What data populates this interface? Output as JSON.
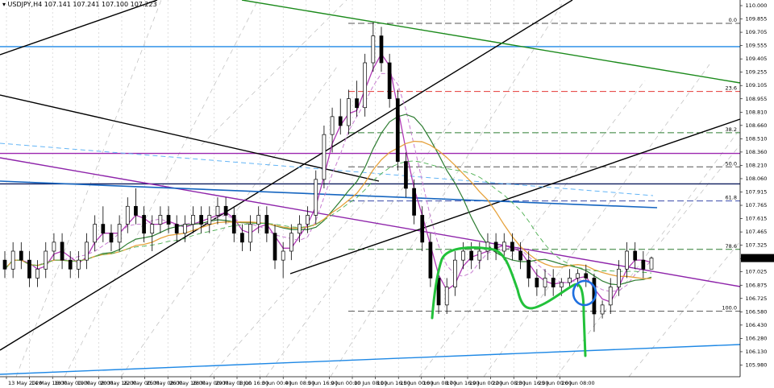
{
  "header": {
    "symbol_line": "▾ USDJPY,H4  107.141 107.241 107.100 107.223"
  },
  "chart_data": {
    "type": "candlestick",
    "symbol": "USDJPY",
    "timeframe": "H4",
    "ohlc": {
      "open": 107.141,
      "high": 107.241,
      "low": 107.1,
      "close": 107.223
    },
    "current_price_label": "107.223",
    "ylim": [
      106.0,
      111.0
    ],
    "y_ticks": [
      "110.000",
      "109.855",
      "109.705",
      "109.555",
      "109.405",
      "109.255",
      "109.105",
      "108.955",
      "108.810",
      "108.660",
      "108.510",
      "108.360",
      "108.210",
      "108.060",
      "107.915",
      "107.765",
      "107.615",
      "107.465",
      "107.325",
      "107.175",
      "107.025",
      "106.875",
      "106.725",
      "106.580",
      "106.430",
      "106.280",
      "106.130",
      "105.980"
    ],
    "x_ticks": [
      "13 May 2020",
      "14 May 16:00",
      "18 May 00:00",
      "19 May 08:00",
      "20 May 16:00",
      "22 May 00:00",
      "25 May 08:00",
      "26 May 16:00",
      "28 May 00:00",
      "29 May 08:00",
      "1 Jun 16:00",
      "3 Jun 00:00",
      "4 Jun 08:00",
      "5 Jun 16:00",
      "9 Jun 00:00",
      "10 Jun 08:00",
      "11 Jun 16:00",
      "15 Jun 00:00",
      "16 Jun 08:00",
      "17 Jun 16:00",
      "19 Jun 00:00",
      "22 Jun 08:00",
      "23 Jun 16:00",
      "25 Jun 00:00",
      "26 Jun 08:00"
    ],
    "fib_levels": [
      {
        "label": "0.0",
        "price": 109.84
      },
      {
        "label": "23.6",
        "price": 109.08
      },
      {
        "label": "38.2",
        "price": 108.62
      },
      {
        "label": "50.0",
        "price": 108.24
      },
      {
        "label": "61.8",
        "price": 107.86
      },
      {
        "label": "78.6",
        "price": 107.32
      },
      {
        "label": "100.0",
        "price": 106.63
      }
    ],
    "horizontal_lines": [
      {
        "price": 109.58,
        "color": "#1e88e5"
      },
      {
        "price": 108.39,
        "color": "#9c27b0"
      },
      {
        "price": 108.05,
        "color": "#0d1b5e"
      }
    ],
    "candles": [
      [
        107.2,
        107.3,
        107.0,
        107.1
      ],
      [
        107.1,
        107.4,
        107.0,
        107.3
      ],
      [
        107.3,
        107.4,
        107.1,
        107.2
      ],
      [
        107.2,
        107.3,
        106.9,
        107.0
      ],
      [
        107.0,
        107.2,
        106.9,
        107.1
      ],
      [
        107.1,
        107.4,
        107.0,
        107.3
      ],
      [
        107.3,
        107.5,
        107.2,
        107.4
      ],
      [
        107.4,
        107.5,
        107.1,
        107.2
      ],
      [
        107.2,
        107.3,
        107.0,
        107.1
      ],
      [
        107.1,
        107.3,
        107.0,
        107.2
      ],
      [
        107.2,
        107.5,
        107.1,
        107.4
      ],
      [
        107.4,
        107.7,
        107.3,
        107.6
      ],
      [
        107.6,
        107.8,
        107.4,
        107.5
      ],
      [
        107.5,
        107.6,
        107.3,
        107.4
      ],
      [
        107.4,
        107.7,
        107.3,
        107.6
      ],
      [
        107.6,
        107.9,
        107.5,
        107.8
      ],
      [
        107.8,
        108.0,
        107.6,
        107.7
      ],
      [
        107.7,
        107.8,
        107.4,
        107.5
      ],
      [
        107.5,
        107.7,
        107.3,
        107.6
      ],
      [
        107.6,
        107.8,
        107.5,
        107.7
      ],
      [
        107.7,
        107.8,
        107.5,
        107.6
      ],
      [
        107.6,
        107.7,
        107.4,
        107.5
      ],
      [
        107.5,
        107.7,
        107.4,
        107.6
      ],
      [
        107.6,
        107.8,
        107.5,
        107.7
      ],
      [
        107.7,
        107.8,
        107.5,
        107.6
      ],
      [
        107.6,
        107.8,
        107.5,
        107.7
      ],
      [
        107.7,
        107.9,
        107.6,
        107.8
      ],
      [
        107.8,
        107.9,
        107.6,
        107.7
      ],
      [
        107.7,
        107.8,
        107.4,
        107.5
      ],
      [
        107.5,
        107.6,
        107.3,
        107.4
      ],
      [
        107.4,
        107.7,
        107.3,
        107.6
      ],
      [
        107.6,
        107.8,
        107.5,
        107.7
      ],
      [
        107.7,
        107.8,
        107.4,
        107.5
      ],
      [
        107.5,
        107.6,
        107.1,
        107.2
      ],
      [
        107.2,
        107.4,
        107.0,
        107.3
      ],
      [
        107.3,
        107.6,
        107.2,
        107.5
      ],
      [
        107.5,
        107.7,
        107.4,
        107.6
      ],
      [
        107.6,
        107.8,
        107.5,
        107.7
      ],
      [
        107.7,
        108.2,
        107.6,
        108.1
      ],
      [
        108.1,
        108.7,
        108.0,
        108.6
      ],
      [
        108.6,
        108.9,
        108.4,
        108.8
      ],
      [
        108.8,
        109.0,
        108.6,
        108.7
      ],
      [
        108.7,
        109.1,
        108.6,
        109.0
      ],
      [
        109.0,
        109.2,
        108.8,
        108.9
      ],
      [
        108.9,
        109.5,
        108.8,
        109.4
      ],
      [
        109.4,
        109.85,
        109.3,
        109.7
      ],
      [
        109.7,
        109.8,
        109.3,
        109.4
      ],
      [
        109.4,
        109.5,
        108.9,
        109.0
      ],
      [
        109.0,
        109.1,
        108.2,
        108.3
      ],
      [
        108.3,
        108.4,
        107.9,
        108.0
      ],
      [
        108.0,
        108.1,
        107.6,
        107.7
      ],
      [
        107.7,
        107.8,
        107.3,
        107.4
      ],
      [
        107.4,
        107.5,
        106.9,
        107.0
      ],
      [
        107.0,
        107.1,
        106.6,
        106.7
      ],
      [
        106.7,
        107.0,
        106.6,
        106.9
      ],
      [
        106.9,
        107.3,
        106.8,
        107.2
      ],
      [
        107.2,
        107.4,
        107.1,
        107.3
      ],
      [
        107.3,
        107.4,
        107.1,
        107.2
      ],
      [
        107.2,
        107.4,
        107.1,
        107.3
      ],
      [
        107.3,
        107.5,
        107.2,
        107.4
      ],
      [
        107.4,
        107.5,
        107.2,
        107.3
      ],
      [
        107.3,
        107.5,
        107.2,
        107.4
      ],
      [
        107.4,
        107.5,
        107.2,
        107.3
      ],
      [
        107.3,
        107.4,
        107.1,
        107.2
      ],
      [
        107.2,
        107.3,
        106.9,
        107.0
      ],
      [
        107.0,
        107.1,
        106.8,
        106.9
      ],
      [
        106.9,
        107.1,
        106.8,
        107.0
      ],
      [
        107.0,
        107.1,
        106.8,
        106.9
      ],
      [
        106.9,
        107.0,
        106.8,
        106.95
      ],
      [
        106.95,
        107.1,
        106.9,
        107.0
      ],
      [
        107.0,
        107.1,
        106.9,
        107.05
      ],
      [
        107.05,
        107.15,
        106.9,
        107.0
      ],
      [
        107.0,
        107.05,
        106.4,
        106.6
      ],
      [
        106.6,
        106.75,
        106.55,
        106.7
      ],
      [
        106.7,
        107.0,
        106.6,
        106.9
      ],
      [
        106.9,
        107.2,
        106.8,
        107.1
      ],
      [
        107.1,
        107.4,
        107.0,
        107.3
      ],
      [
        107.3,
        107.4,
        107.1,
        107.2
      ],
      [
        107.2,
        107.3,
        107.0,
        107.1
      ],
      [
        107.1,
        107.241,
        107.1,
        107.223
      ]
    ]
  }
}
